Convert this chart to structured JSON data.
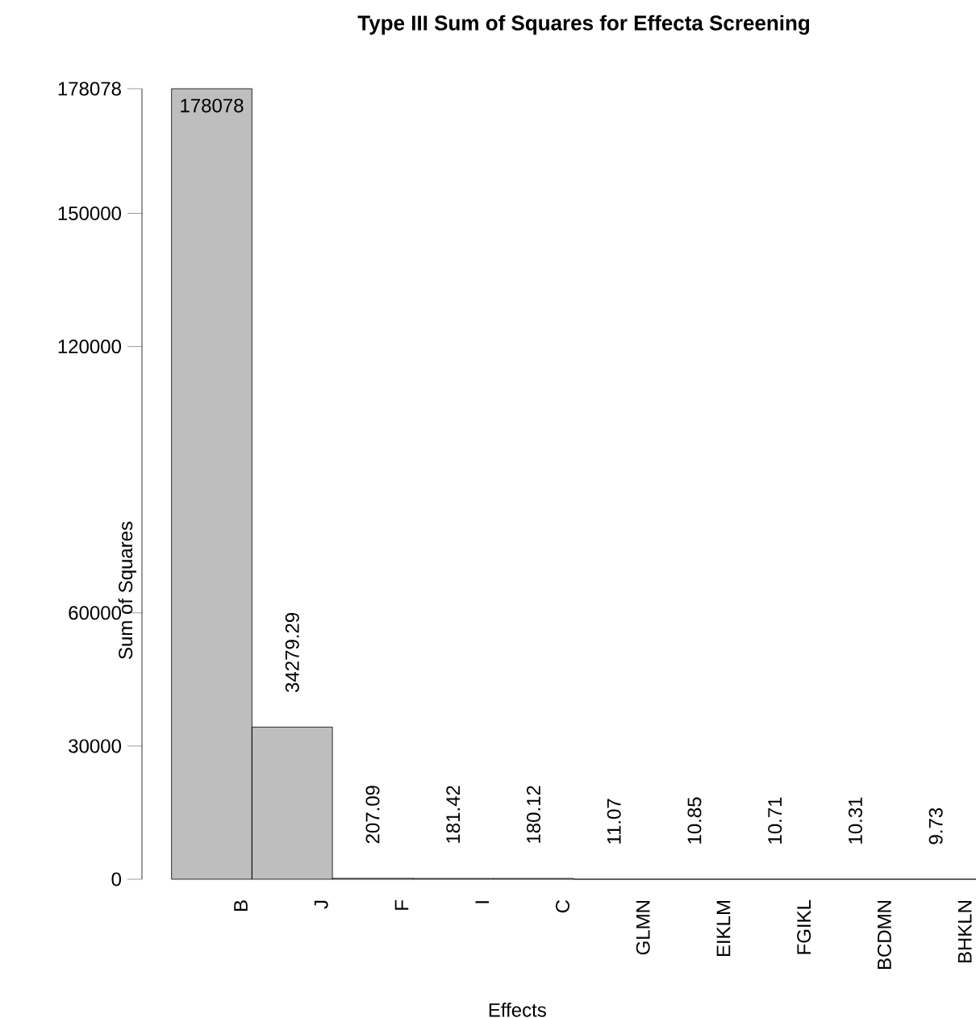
{
  "chart_data": {
    "type": "bar",
    "title": "Type III Sum of Squares for Effecta Screening",
    "xlabel": "Effects",
    "ylabel": "Sum of Squares",
    "categories": [
      "B",
      "J",
      "F",
      "I",
      "C",
      "GLMN",
      "EIKLM",
      "FGIKL",
      "BCDMN",
      "BHKLN"
    ],
    "values": [
      178078,
      34279.29,
      207.09,
      181.42,
      180.12,
      11.07,
      10.85,
      10.71,
      10.31,
      9.73
    ],
    "value_labels": [
      "178078",
      "34279.29",
      "207.09",
      "181.42",
      "180.12",
      "11.07",
      "10.85",
      "10.71",
      "10.31",
      "9.73"
    ],
    "color": "#bebebe",
    "ylim": [
      0,
      178078
    ],
    "yticks": [
      0,
      30000,
      60000,
      120000,
      150000,
      178078
    ],
    "grid": false
  }
}
